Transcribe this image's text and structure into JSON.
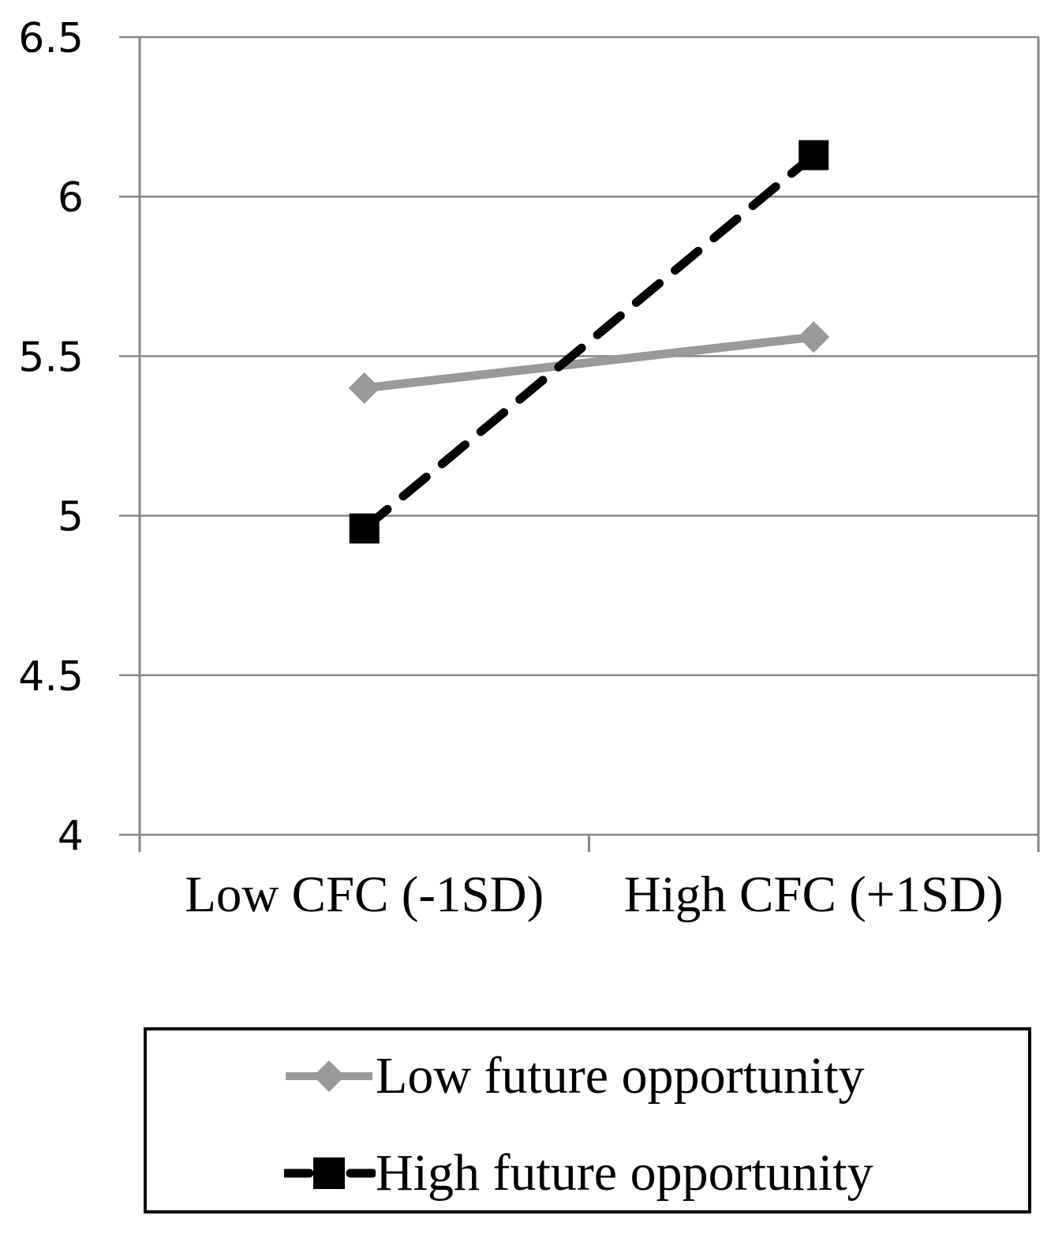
{
  "chart_data": {
    "type": "line",
    "title": "",
    "xlabel": "",
    "ylabel": "",
    "categories": [
      "Low CFC (-1SD)",
      "High CFC (+1SD)"
    ],
    "series": [
      {
        "name": "Low future opportunity",
        "values": [
          5.4,
          5.56
        ],
        "color": "#999999",
        "line_style": "solid",
        "marker": "diamond"
      },
      {
        "name": "High future opportunity",
        "values": [
          4.96,
          6.13
        ],
        "color": "#000000",
        "line_style": "dashed",
        "marker": "square"
      }
    ],
    "ylim": [
      4,
      6.5
    ],
    "ytick_step": 0.5,
    "yticks": [
      "4",
      "4.5",
      "5",
      "5.5",
      "6",
      "6.5"
    ],
    "grid": true,
    "legend_position": "bottom",
    "axis_color": "#878787",
    "text_color": "#000000",
    "background_color": "#ffffff"
  }
}
